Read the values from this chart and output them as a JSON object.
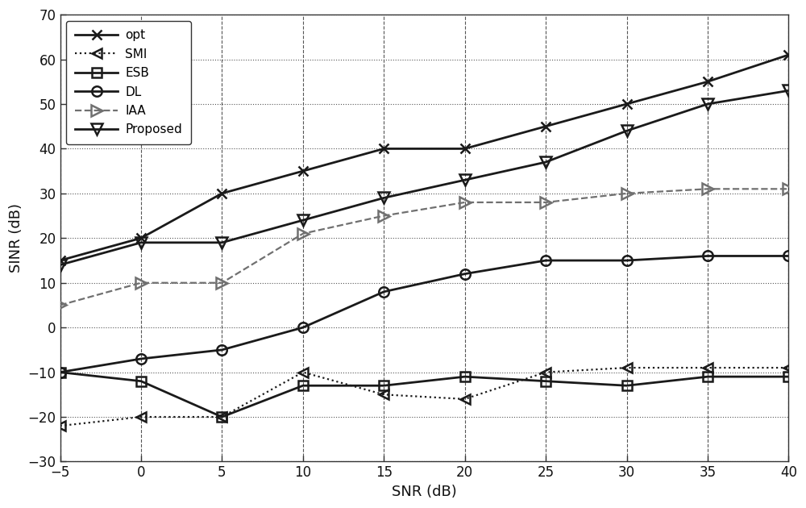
{
  "snr": [
    -5,
    0,
    5,
    10,
    15,
    20,
    25,
    30,
    35,
    40
  ],
  "opt": [
    15,
    20,
    30,
    35,
    40,
    40,
    45,
    50,
    55,
    61
  ],
  "SMI": [
    -22,
    -20,
    -20,
    -10,
    -15,
    -16,
    -10,
    -9,
    -9,
    -9
  ],
  "ESB": [
    -10,
    -12,
    -20,
    -13,
    -13,
    -11,
    -12,
    -13,
    -11,
    -11
  ],
  "DL": [
    -10,
    -7,
    -5,
    0,
    8,
    12,
    15,
    15,
    16,
    16
  ],
  "IAA": [
    5,
    10,
    10,
    21,
    25,
    28,
    28,
    30,
    31,
    31
  ],
  "Proposed": [
    14,
    19,
    19,
    24,
    29,
    33,
    37,
    44,
    50,
    53
  ],
  "xlabel": "SNR (dB)",
  "ylabel": "SINR (dB)",
  "xlim": [
    -5,
    40
  ],
  "ylim": [
    -30,
    70
  ],
  "xticks": [
    -5,
    0,
    5,
    10,
    15,
    20,
    25,
    30,
    35,
    40
  ],
  "yticks": [
    -30,
    -20,
    -10,
    0,
    10,
    20,
    30,
    40,
    50,
    60,
    70
  ],
  "dark": "#1a1a1a",
  "gray": "#707070"
}
